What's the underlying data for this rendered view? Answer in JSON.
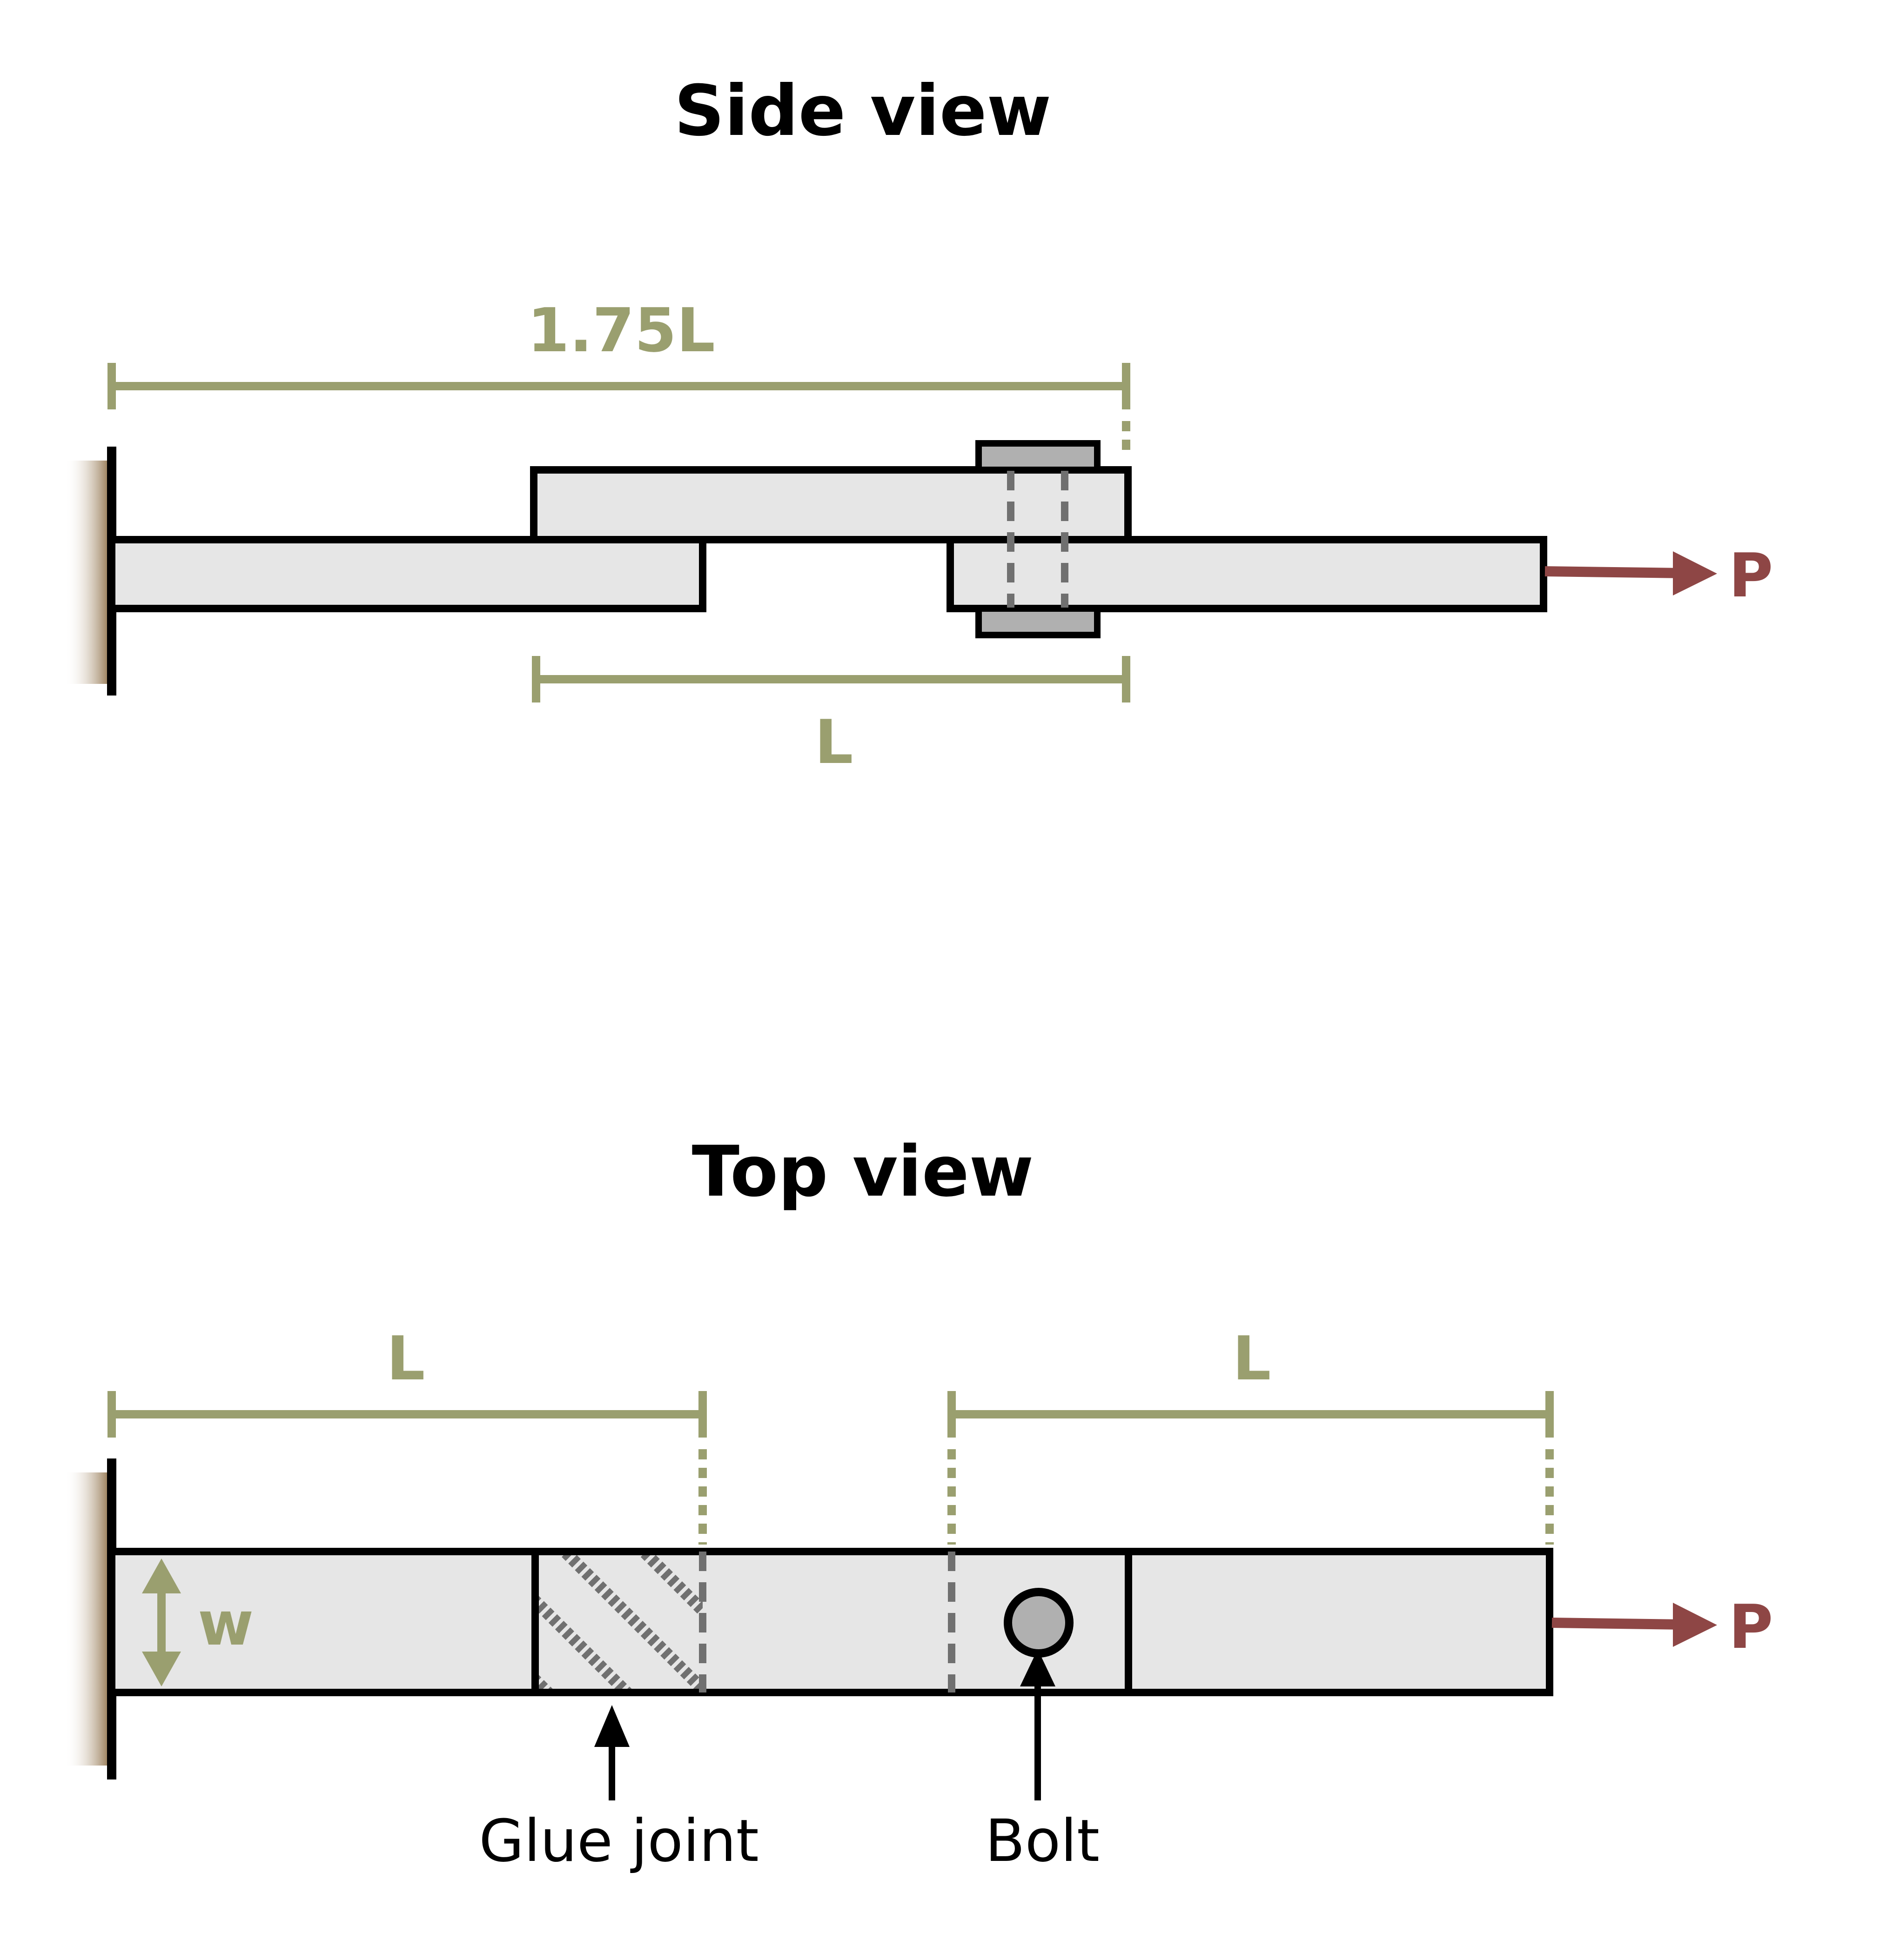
{
  "side_view": {
    "title": "Side view",
    "dim_top": "1.75L",
    "dim_bottom": "L",
    "load": "P"
  },
  "top_view": {
    "title": "Top view",
    "dim_left": "L",
    "dim_right": "L",
    "width_label": "w",
    "load": "P",
    "glue_label": "Glue joint",
    "bolt_label": "Bolt"
  },
  "colors": {
    "dimension": "#9a9f6f",
    "load": "#8e4645",
    "member_fill": "#e6e6e6",
    "bolt_fill": "#b0b0b0",
    "outline": "#000000",
    "dashed": "#707070",
    "wall": "#9c7a4e"
  }
}
